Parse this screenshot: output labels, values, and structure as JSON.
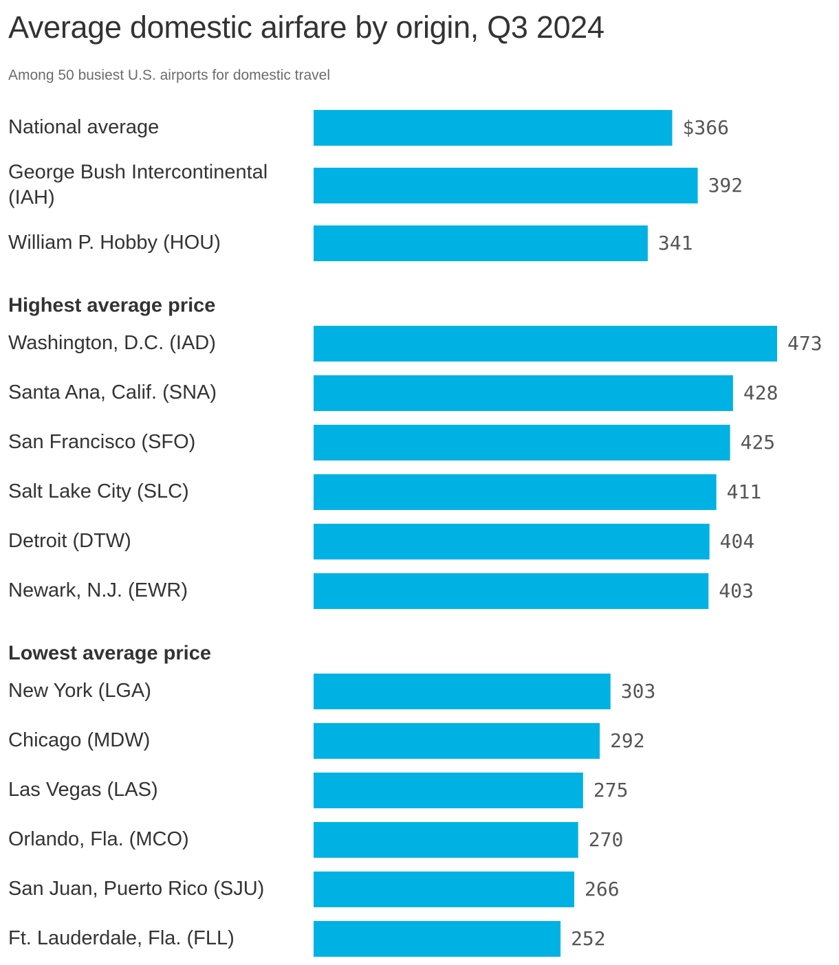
{
  "chart_data": {
    "type": "bar",
    "orientation": "horizontal",
    "title": "Average domestic airfare by origin, Q3 2024",
    "subtitle": "Among 50 busiest U.S. airports for domestic travel",
    "xlim": [
      0,
      473
    ],
    "grid": false,
    "legend": "none",
    "bar_color": "#00b2e3",
    "value_prefix_first": "$",
    "groups": [
      {
        "heading": "",
        "items": [
          {
            "label": [
              "National average"
            ],
            "value": 366
          },
          {
            "label": [
              "George Bush Intercontinental",
              "(IAH)"
            ],
            "value": 392
          },
          {
            "label": [
              "William P. Hobby (HOU)"
            ],
            "value": 341
          }
        ]
      },
      {
        "heading": "Highest average price",
        "items": [
          {
            "label": [
              "Washington, D.C. (IAD)"
            ],
            "value": 473
          },
          {
            "label": [
              "Santa Ana, Calif. (SNA)"
            ],
            "value": 428
          },
          {
            "label": [
              "San Francisco (SFO)"
            ],
            "value": 425
          },
          {
            "label": [
              "Salt Lake City (SLC)"
            ],
            "value": 411
          },
          {
            "label": [
              "Detroit (DTW)"
            ],
            "value": 404
          },
          {
            "label": [
              "Newark, N.J. (EWR)"
            ],
            "value": 403
          }
        ]
      },
      {
        "heading": "Lowest average price",
        "items": [
          {
            "label": [
              "New York (LGA)"
            ],
            "value": 303
          },
          {
            "label": [
              "Chicago (MDW)"
            ],
            "value": 292
          },
          {
            "label": [
              "Las Vegas (LAS)"
            ],
            "value": 275
          },
          {
            "label": [
              "Orlando, Fla. (MCO)"
            ],
            "value": 270
          },
          {
            "label": [
              "San Juan, Puerto Rico (SJU)"
            ],
            "value": 266
          },
          {
            "label": [
              "Ft. Lauderdale, Fla. (FLL)"
            ],
            "value": 252
          }
        ]
      }
    ]
  }
}
